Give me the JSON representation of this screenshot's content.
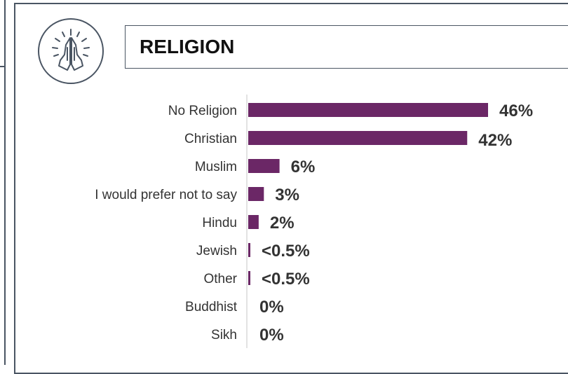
{
  "header": {
    "title": "RELIGION",
    "icon": "praying-hands-icon"
  },
  "colors": {
    "bar": "#6b2766",
    "border": "#4a5563",
    "label": "#333333",
    "value": "#333333"
  },
  "chart_data": {
    "type": "bar",
    "orientation": "horizontal",
    "title": "RELIGION",
    "categories": [
      "No Religion",
      "Christian",
      "Muslim",
      "I would prefer not to say",
      "Hindu",
      "Jewish",
      "Other",
      "Buddhist",
      "Sikh"
    ],
    "values": [
      46,
      42,
      6,
      3,
      2,
      0.4,
      0.4,
      0,
      0
    ],
    "data_labels": [
      "46%",
      "42%",
      "6%",
      "3%",
      "2%",
      "<0.5%",
      "<0.5%",
      "0%",
      "0%"
    ],
    "unit": "%",
    "grid": false,
    "legend": "none"
  }
}
